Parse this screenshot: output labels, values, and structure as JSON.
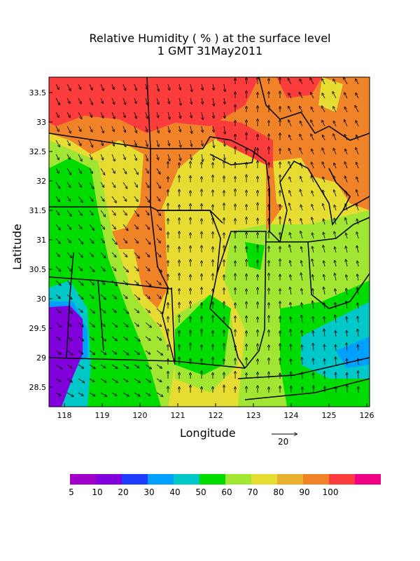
{
  "title": "Relative Humidity ( % ) at the surface level",
  "subtitle": "1 GMT 31May2011",
  "xlabel": "Longitude",
  "ylabel": "Latitude",
  "x_ticks": [
    "118",
    "119",
    "120",
    "121",
    "122",
    "123",
    "124",
    "125",
    "126"
  ],
  "y_ticks": [
    "33.5",
    "33",
    "32.5",
    "32",
    "31.5",
    "31",
    "30.5",
    "30",
    "29.5",
    "29",
    "28.5"
  ],
  "reference_vector": "20",
  "legend": {
    "labels": [
      "5",
      "10",
      "20",
      "30",
      "40",
      "50",
      "60",
      "70",
      "80",
      "90",
      "100"
    ],
    "colors": [
      "#a000c8",
      "#8200dc",
      "#1e3cff",
      "#00a0ff",
      "#00c8c8",
      "#00dc00",
      "#a0e632",
      "#e6dc32",
      "#e6af2d",
      "#f08228",
      "#fa3c3c",
      "#f00082"
    ]
  },
  "chart_data": {
    "type": "heatmap",
    "title": "Relative Humidity ( % ) at the surface level",
    "subtitle": "1 GMT 31May2011",
    "xlabel": "Longitude",
    "ylabel": "Latitude",
    "xlim": [
      117.6,
      126.1
    ],
    "ylim": [
      28.2,
      33.8
    ],
    "levels": [
      5,
      10,
      20,
      30,
      40,
      50,
      60,
      70,
      80,
      90,
      100
    ],
    "colors": [
      "#a000c8",
      "#8200dc",
      "#1e3cff",
      "#00a0ff",
      "#00c8c8",
      "#00dc00",
      "#a0e632",
      "#e6dc32",
      "#e6af2d",
      "#f08228",
      "#fa3c3c",
      "#f00082"
    ]
  }
}
